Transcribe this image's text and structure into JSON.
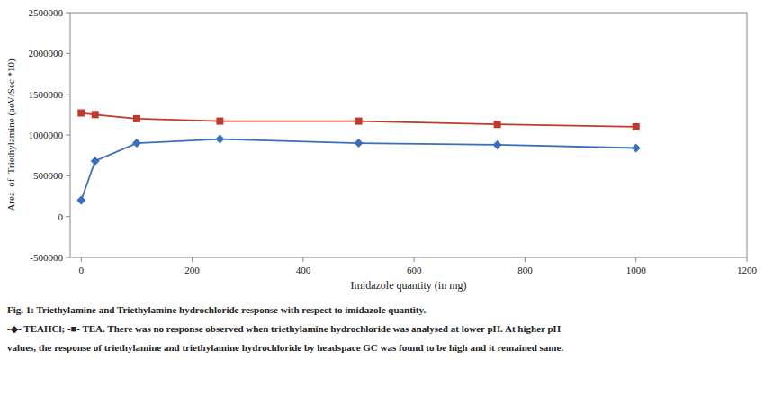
{
  "chart_data": {
    "type": "line",
    "x": [
      0,
      25,
      100,
      250,
      500,
      750,
      1000
    ],
    "series": [
      {
        "color": "#3a6fbf",
        "marker": "diamond",
        "values": [
          200000,
          680000,
          900000,
          950000,
          900000,
          880000,
          840000
        ]
      },
      {
        "color": "#c0392b",
        "marker": "square",
        "values": [
          1270000,
          1250000,
          1200000,
          1170000,
          1170000,
          1130000,
          1100000
        ]
      }
    ],
    "xlabel": "Imidazole quantity (in mg)",
    "ylabel": "Area  of  Triethylamine (aeV/Sec *10)",
    "xlim": [
      -20,
      1200
    ],
    "ylim": [
      -500000,
      2500000
    ],
    "xticks": [
      0,
      200,
      400,
      600,
      800,
      1000,
      1200
    ],
    "yticks": [
      -500000,
      0,
      500000,
      1000000,
      1500000,
      2000000,
      2500000
    ],
    "grid": false,
    "annotations": [
      "Fig. 1: Triethylamine and Triethylamine hydrochloride response with respect to imidazole quantity.",
      "-◆- TEAHCl; -■- TEA. There was no response observed when triethylamine hydrochloride was analysed at lower pH. At higher pH",
      "values, the response of triethylamine and triethylamine hydrochloride by headspace GC was found to be high and it remained same."
    ]
  }
}
